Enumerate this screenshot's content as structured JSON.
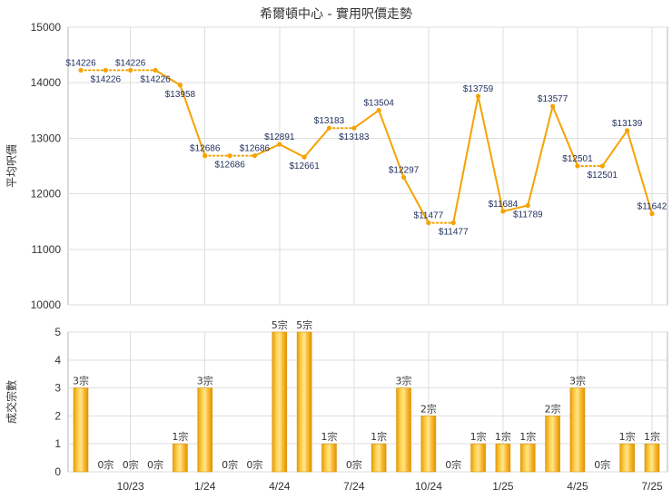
{
  "chart_data": [
    {
      "type": "line",
      "title": "希爾頓中心 - 實用呎價走勢",
      "ylabel": "平均呎價",
      "ylim": [
        10000,
        15000
      ],
      "yticks": [
        10000,
        11000,
        12000,
        13000,
        14000,
        15000
      ],
      "values": [
        14226,
        14226,
        14226,
        14226,
        13958,
        12686,
        12686,
        12686,
        12891,
        12661,
        13183,
        13183,
        13504,
        12297,
        11477,
        11477,
        13759,
        11684,
        11789,
        13577,
        12501,
        12501,
        13139,
        11642
      ],
      "labels": [
        "$14226",
        "$14226",
        "$14226",
        "$14226",
        "$13958",
        "$12686",
        "$12686",
        "$12686",
        "$12891",
        "$12661",
        "$13183",
        "$13183",
        "$13504",
        "$12297",
        "$11477",
        "$11477",
        "$13759",
        "$11684",
        "$11789",
        "$13577",
        "$12501",
        "$12501",
        "$13139",
        "$11642"
      ],
      "grid": true,
      "color": "#F5A300"
    },
    {
      "type": "bar",
      "ylabel": "成交宗數",
      "ylim": [
        0,
        5
      ],
      "yticks": [
        0,
        1,
        2,
        3,
        4,
        5
      ],
      "values": [
        3,
        0,
        0,
        0,
        1,
        3,
        0,
        0,
        5,
        5,
        1,
        0,
        1,
        3,
        2,
        0,
        1,
        1,
        1,
        2,
        3,
        0,
        1,
        1
      ],
      "labels": [
        "3宗",
        "0宗",
        "0宗",
        "0宗",
        "1宗",
        "3宗",
        "0宗",
        "0宗",
        "5宗",
        "5宗",
        "1宗",
        "0宗",
        "1宗",
        "3宗",
        "2宗",
        "0宗",
        "1宗",
        "1宗",
        "1宗",
        "2宗",
        "3宗",
        "0宗",
        "1宗",
        "1宗"
      ],
      "xticks": [
        {
          "index": 2,
          "label": "10/23"
        },
        {
          "index": 5,
          "label": "1/24"
        },
        {
          "index": 8,
          "label": "4/24"
        },
        {
          "index": 11,
          "label": "7/24"
        },
        {
          "index": 14,
          "label": "10/24"
        },
        {
          "index": 17,
          "label": "1/25"
        },
        {
          "index": 20,
          "label": "4/25"
        },
        {
          "index": 23,
          "label": "7/25"
        }
      ],
      "grid": true,
      "color": "#D9940A"
    }
  ]
}
